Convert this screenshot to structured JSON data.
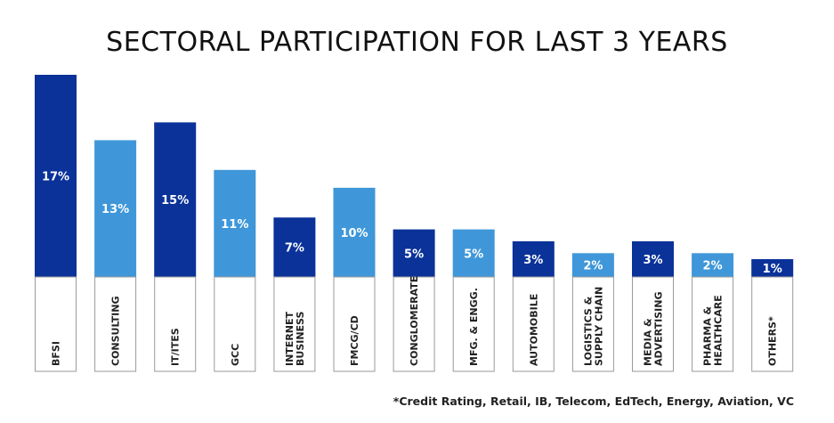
{
  "chart_data": {
    "type": "bar",
    "title": "SECTORAL PARTICIPATION FOR LAST 3 YEARS",
    "categories": [
      [
        "BFSI"
      ],
      [
        "CONSULTING"
      ],
      [
        "IT/ITES"
      ],
      [
        "GCC"
      ],
      [
        "INTERNET",
        "BUSINESS"
      ],
      [
        "FMCG/CD"
      ],
      [
        "CONGLOMERATE"
      ],
      [
        "MFG. & ENGG."
      ],
      [
        "AUTOMOBILE"
      ],
      [
        "LOGISTICS &",
        "SUPPLY CHAIN"
      ],
      [
        "MEDIA &",
        "ADVERTISING"
      ],
      [
        "PHARMA &",
        "HEALTHCARE"
      ],
      [
        "OTHERS*"
      ]
    ],
    "values": [
      17,
      13,
      15,
      11,
      7,
      10,
      5,
      5,
      3,
      2,
      3,
      2,
      1
    ],
    "value_labels": [
      "17%",
      "13%",
      "15%",
      "11%",
      "7%",
      "10%",
      "5%",
      "5%",
      "3%",
      "2%",
      "3%",
      "2%",
      "1%"
    ],
    "colors": [
      "#0a3299",
      "#3f97d9",
      "#0a3299",
      "#3f97d9",
      "#0a3299",
      "#3f97d9",
      "#0a3299",
      "#3f97d9",
      "#0a3299",
      "#3f97d9",
      "#0a3299",
      "#3f97d9",
      "#0a3299"
    ],
    "bar_display_values": [
      17,
      11.5,
      13,
      9,
      5,
      7.5,
      4,
      4,
      3,
      2,
      3,
      2,
      1.5
    ],
    "ylim": [
      0,
      17
    ],
    "xlabel": "",
    "ylabel": "",
    "footnote": "*Credit Rating, Retail, IB, Telecom, EdTech, Energy, Aviation, VC"
  }
}
